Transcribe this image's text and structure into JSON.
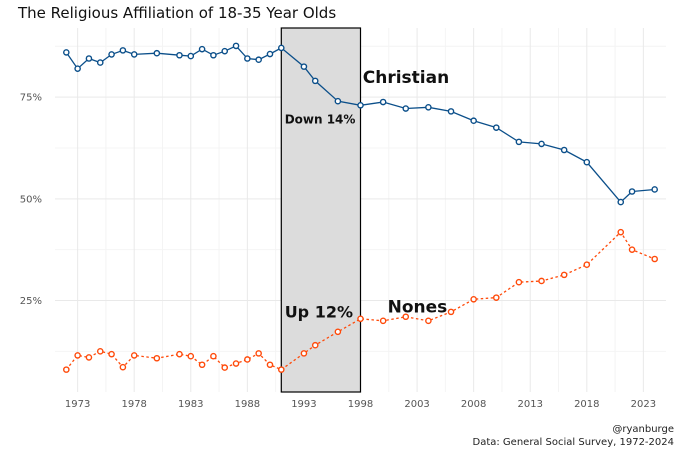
{
  "chart_data": {
    "type": "line",
    "title": "The Religious Affiliation of 18-35 Year Olds",
    "xlabel": "",
    "ylabel": "",
    "xlim": [
      1971,
      2025
    ],
    "ylim": [
      2.5,
      92
    ],
    "x_ticks": [
      1973,
      1978,
      1983,
      1988,
      1993,
      1998,
      2003,
      2008,
      2013,
      2018,
      2023
    ],
    "x_tick_labels": [
      "1973",
      "1978",
      "1983",
      "1988",
      "1993",
      "1998",
      "2003",
      "2008",
      "2013",
      "2018",
      "2023"
    ],
    "y_ticks": [
      25,
      50,
      75
    ],
    "y_tick_labels": [
      "25%",
      "50%",
      "75%"
    ],
    "grid": true,
    "highlight_range": [
      1991,
      1998
    ],
    "series": [
      {
        "name": "Christian",
        "color": "#0b4f8a",
        "line_style": "solid",
        "x": [
          1972,
          1973,
          1974,
          1975,
          1976,
          1977,
          1978,
          1980,
          1982,
          1983,
          1984,
          1985,
          1986,
          1987,
          1988,
          1989,
          1990,
          1991,
          1993,
          1994,
          1996,
          1998,
          2000,
          2002,
          2004,
          2006,
          2008,
          2010,
          2012,
          2014,
          2016,
          2018,
          2021,
          2022,
          2024
        ],
        "values": [
          86,
          82,
          84.5,
          83.5,
          85.5,
          86.5,
          85.5,
          85.8,
          85.3,
          85.1,
          86.8,
          85.3,
          86.3,
          87.6,
          84.5,
          84.2,
          85.6,
          87.1,
          82.5,
          79,
          74,
          73,
          73.8,
          72.2,
          72.5,
          71.5,
          69.2,
          67.5,
          64,
          63.5,
          62,
          59,
          49.2,
          51.8,
          52.3
        ]
      },
      {
        "name": "Nones",
        "color": "#ff4a0a",
        "line_style": "dotted",
        "x": [
          1972,
          1973,
          1974,
          1975,
          1976,
          1977,
          1978,
          1980,
          1982,
          1983,
          1984,
          1985,
          1986,
          1987,
          1988,
          1989,
          1990,
          1991,
          1993,
          1994,
          1996,
          1998,
          2000,
          2002,
          2004,
          2006,
          2008,
          2010,
          2012,
          2014,
          2016,
          2018,
          2021,
          2022,
          2024
        ],
        "values": [
          8,
          11.5,
          11,
          12.5,
          11.8,
          8.6,
          11.5,
          10.8,
          11.8,
          11.3,
          9.2,
          11.3,
          8.5,
          9.5,
          10.5,
          12,
          9.2,
          8,
          12,
          14,
          17.3,
          20.5,
          20,
          21,
          20,
          22.2,
          25.3,
          25.7,
          29.5,
          29.8,
          31.3,
          33.8,
          41.8,
          37.5,
          35.2
        ]
      }
    ],
    "annotations": [
      {
        "text": "Christian",
        "x": 1998.2,
        "y": 78.5,
        "size": 17
      },
      {
        "text": "Down 14%",
        "x": 1991.3,
        "y": 68.5,
        "size": 12
      },
      {
        "text": "Up 12%",
        "x": 1991.3,
        "y": 20.8,
        "size": 16
      },
      {
        "text": "Nones",
        "x": 2000.4,
        "y": 22,
        "size": 17
      }
    ],
    "credits": [
      "@ryanburge",
      "Data: General Social Survey, 1972-2024"
    ]
  }
}
